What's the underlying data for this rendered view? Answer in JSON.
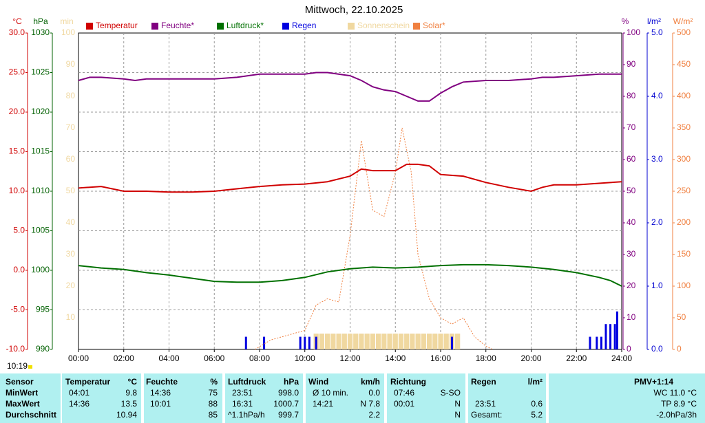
{
  "chart_data": {
    "type": "line",
    "title": "Mittwoch, 22.10.2025",
    "time_label": "10:19",
    "grid": true,
    "xlim": [
      0,
      24
    ],
    "xticks": [
      {
        "value": 0,
        "label": "00:00"
      },
      {
        "value": 2,
        "label": "02:00"
      },
      {
        "value": 4,
        "label": "04:00"
      },
      {
        "value": 6,
        "label": "06:00"
      },
      {
        "value": 8,
        "label": "08:00"
      },
      {
        "value": 10,
        "label": "10:00"
      },
      {
        "value": 12,
        "label": "12:00"
      },
      {
        "value": 14,
        "label": "14:00"
      },
      {
        "value": 16,
        "label": "16:00"
      },
      {
        "value": 18,
        "label": "18:00"
      },
      {
        "value": 20,
        "label": "20:00"
      },
      {
        "value": 22,
        "label": "22:00"
      },
      {
        "value": 24,
        "label": "24:00"
      }
    ],
    "axes": [
      {
        "name": "°C",
        "side": "left",
        "color": "#d00000",
        "lim": [
          -10,
          30
        ],
        "ticks": [
          {
            "value": 30,
            "label": "30.0"
          },
          {
            "value": 25,
            "label": "25.0"
          },
          {
            "value": 20,
            "label": "20.0"
          },
          {
            "value": 15,
            "label": "15.0"
          },
          {
            "value": 10,
            "label": "10.0"
          },
          {
            "value": 5,
            "label": "5.0"
          },
          {
            "value": 0,
            "label": "0.0"
          },
          {
            "value": -5,
            "label": "-5.0"
          },
          {
            "value": -10,
            "label": "-10.0"
          }
        ]
      },
      {
        "name": "hPa",
        "side": "left",
        "color": "#006000",
        "lim": [
          990,
          1030
        ],
        "ticks": [
          1030,
          1025,
          1020,
          1015,
          1010,
          1005,
          1000,
          995,
          990
        ]
      },
      {
        "name": "min",
        "side": "left",
        "color": "#f0d8a0",
        "lim": [
          0,
          100
        ],
        "ticks": [
          100,
          90,
          80,
          70,
          60,
          50,
          40,
          30,
          20,
          10
        ]
      },
      {
        "name": "%",
        "side": "right",
        "color": "#800080",
        "lim": [
          0,
          100
        ],
        "ticks": [
          100,
          90,
          80,
          70,
          60,
          50,
          40,
          30,
          20,
          10,
          0
        ]
      },
      {
        "name": "l/m²",
        "side": "right",
        "color": "#0000d0",
        "lim": [
          0,
          5
        ],
        "ticks": [
          {
            "value": 5,
            "label": "5.0"
          },
          {
            "value": 4,
            "label": "4.0"
          },
          {
            "value": 3,
            "label": "3.0"
          },
          {
            "value": 2,
            "label": "2.0"
          },
          {
            "value": 1,
            "label": "1.0"
          },
          {
            "value": 0,
            "label": "0.0"
          }
        ]
      },
      {
        "name": "W/m²",
        "side": "right",
        "color": "#f08040",
        "lim": [
          0,
          500
        ],
        "ticks": [
          500,
          450,
          400,
          350,
          300,
          250,
          200,
          150,
          100,
          50,
          0
        ]
      }
    ],
    "series": [
      {
        "name": "Temperatur",
        "color": "#d00000",
        "type": "line",
        "axis": 0,
        "x": [
          0,
          1,
          2,
          3,
          4,
          5,
          6,
          7,
          8,
          9,
          10,
          11,
          12,
          12.5,
          13,
          14,
          14.5,
          15,
          15.5,
          16,
          17,
          18,
          19,
          20,
          20.5,
          21,
          22,
          23,
          24
        ],
        "values": [
          10.4,
          10.6,
          10.0,
          10.0,
          9.9,
          9.9,
          10.0,
          10.3,
          10.6,
          10.8,
          10.9,
          11.2,
          11.9,
          12.8,
          12.6,
          12.6,
          13.4,
          13.4,
          13.2,
          12.1,
          11.9,
          11.1,
          10.5,
          10.0,
          10.5,
          10.8,
          10.8,
          11.0,
          11.2
        ]
      },
      {
        "name": "Feuchte*",
        "color": "#800080",
        "type": "line",
        "axis": 3,
        "x": [
          0,
          0.5,
          1,
          2,
          2.5,
          3,
          4,
          5,
          6,
          7,
          8,
          9,
          10,
          10.5,
          11,
          12,
          12.5,
          13,
          13.5,
          14,
          14.5,
          15,
          15.5,
          16,
          16.5,
          17,
          18,
          19,
          20,
          20.5,
          21,
          22,
          23,
          24
        ],
        "values": [
          85,
          86,
          86,
          85.5,
          85,
          85.5,
          85.5,
          85.5,
          85.5,
          86,
          87,
          87,
          87,
          87.5,
          87.5,
          86.5,
          85,
          83,
          82,
          81.5,
          80,
          78.5,
          78.5,
          81,
          83,
          84.5,
          85,
          85,
          85.5,
          86,
          86,
          86.5,
          87,
          87
        ]
      },
      {
        "name": "Luftdruck*",
        "color": "#007000",
        "type": "line",
        "axis": 1,
        "x": [
          0,
          1,
          2,
          3,
          4,
          5,
          6,
          7,
          8,
          9,
          10,
          11,
          12,
          13,
          14,
          15,
          16,
          17,
          18,
          19,
          20,
          21,
          22,
          23,
          23.5,
          24
        ],
        "values": [
          1000.6,
          1000.3,
          1000.1,
          999.7,
          999.4,
          999.0,
          998.6,
          998.5,
          998.5,
          998.7,
          999.1,
          999.8,
          1000.2,
          1000.4,
          1000.3,
          1000.4,
          1000.6,
          1000.7,
          1000.7,
          1000.6,
          1000.4,
          1000.1,
          999.7,
          999.1,
          998.7,
          998.0
        ]
      },
      {
        "name": "Regen",
        "color": "#0000e0",
        "type": "bar",
        "axis": 4,
        "x": [
          7.4,
          8.2,
          9.8,
          10.0,
          10.2,
          10.5,
          16.5,
          22.6,
          22.9,
          23.1,
          23.3,
          23.5,
          23.7,
          23.8
        ],
        "values": [
          0.2,
          0.2,
          0.2,
          0.2,
          0.2,
          0.2,
          0.2,
          0.2,
          0.2,
          0.2,
          0.4,
          0.4,
          0.4,
          0.6
        ]
      },
      {
        "name": "Sonnenschein",
        "color": "#f0d8a0",
        "type": "bar",
        "axis": 2,
        "x": [
          10.5,
          10.75,
          11,
          11.25,
          11.5,
          11.75,
          12,
          12.25,
          12.5,
          12.75,
          13,
          13.25,
          13.5,
          13.75,
          14,
          14.25,
          14.5,
          14.75,
          15,
          15.25,
          15.5,
          15.75,
          16,
          16.25,
          16.5,
          16.75
        ],
        "values": [
          5,
          5,
          5,
          5,
          5,
          5,
          5,
          5,
          5,
          5,
          5,
          5,
          5,
          5,
          5,
          5,
          5,
          5,
          5,
          5,
          5,
          5,
          5,
          5,
          5,
          5
        ]
      },
      {
        "name": "Solar*",
        "color": "#f08040",
        "type": "line",
        "style": "dashed",
        "axis": 5,
        "x": [
          7.8,
          8.5,
          9,
          9.5,
          10,
          10.5,
          11,
          11.5,
          12,
          12.5,
          13,
          13.5,
          14,
          14.3,
          14.7,
          15,
          15.5,
          16,
          16.5,
          17,
          17.5,
          18,
          18.3
        ],
        "values": [
          0,
          15,
          20,
          25,
          30,
          70,
          80,
          75,
          180,
          330,
          220,
          210,
          280,
          350,
          280,
          150,
          80,
          50,
          40,
          50,
          20,
          5,
          0
        ]
      }
    ]
  },
  "table": {
    "rows": [
      [
        "Sensor",
        "Temperatur",
        "°C",
        "Feuchte",
        "%",
        "Luftdruck",
        "hPa",
        "Wind",
        "km/h",
        "Richtung",
        null,
        "Regen",
        "l/m²",
        "PMV+1:14"
      ],
      [
        "MinWert",
        "04:01",
        "9.8",
        "14:36",
        "75",
        "23:51",
        "998.0",
        "Ø 10 min.",
        "0.0",
        "07:46",
        "S-SO",
        null,
        null,
        "WC 11.0 °C"
      ],
      [
        "MaxWert",
        "14:36",
        "13.5",
        "10:01",
        "88",
        "16:31",
        "1000.7",
        "14:21",
        "N 7.8",
        "00:01",
        "N",
        "23:51",
        "0.6",
        "TP 8.9 °C"
      ],
      [
        "Durchschnitt",
        null,
        "10.94",
        null,
        "85",
        "^1.1hPa/h",
        "999.7",
        null,
        "2.2",
        null,
        "N",
        "Gesamt:",
        "5.2",
        "-2.0hPa/3h"
      ]
    ]
  }
}
